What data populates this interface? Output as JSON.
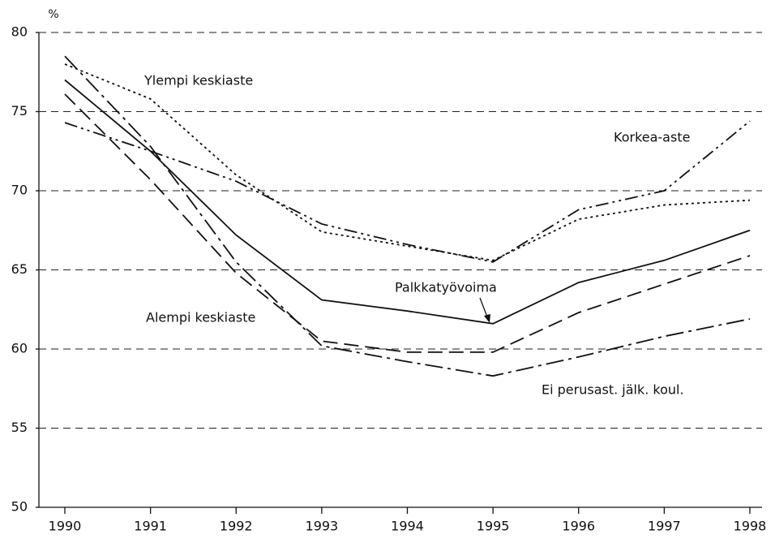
{
  "chart_data": {
    "type": "line",
    "y_unit": "%",
    "x": [
      1990,
      1991,
      1992,
      1993,
      1994,
      1995,
      1996,
      1997,
      1998
    ],
    "xlim": [
      1990,
      1998
    ],
    "xticks": [
      1990,
      1991,
      1992,
      1993,
      1994,
      1995,
      1996,
      1997,
      1998
    ],
    "ylim": [
      50,
      80
    ],
    "yticks": [
      50,
      55,
      60,
      65,
      70,
      75,
      80
    ],
    "grid": true,
    "series": [
      {
        "name": "Palkkatyövoima",
        "color": "#111111",
        "dash": "none",
        "values": [
          77.0,
          72.5,
          67.2,
          63.1,
          62.4,
          61.6,
          64.2,
          65.6,
          67.5
        ]
      },
      {
        "name": "Ylempi keskiaste",
        "color": "#111111",
        "dash": "3 4",
        "values": [
          78.0,
          75.8,
          71.0,
          67.4,
          66.5,
          65.6,
          68.2,
          69.1,
          69.4
        ]
      },
      {
        "name": "Korkea-aste",
        "color": "#111111",
        "dash": "16 5 3 5 3 5",
        "values": [
          74.3,
          72.5,
          70.6,
          67.9,
          66.6,
          65.5,
          68.8,
          70.0,
          74.4
        ]
      },
      {
        "name": "Alempi keskiaste",
        "color": "#111111",
        "dash": "18 8",
        "values": [
          76.1,
          70.7,
          64.8,
          60.5,
          59.8,
          59.8,
          62.3,
          64.1,
          65.9
        ]
      },
      {
        "name": "Ei perusast. jälk. koul.",
        "color": "#111111",
        "dash": "22 6 4 6",
        "values": [
          78.5,
          72.8,
          65.5,
          60.2,
          59.2,
          58.3,
          59.5,
          60.8,
          61.9
        ]
      }
    ]
  }
}
